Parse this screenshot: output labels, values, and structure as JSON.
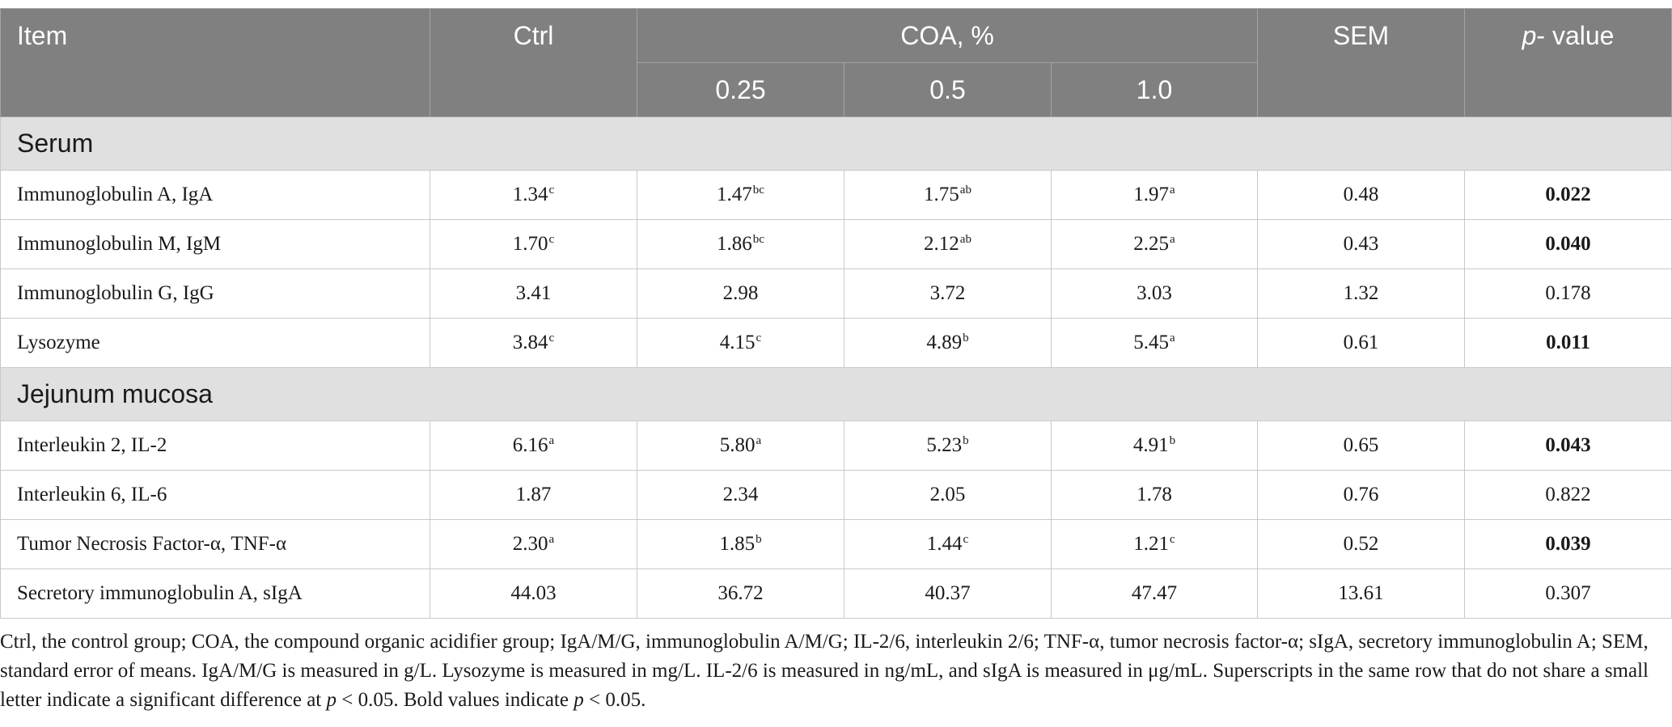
{
  "colors": {
    "header_background": "#808080",
    "header_text": "#ffffff",
    "section_background": "#e0e0e0",
    "grid_border": "#c9c9c9"
  },
  "table": {
    "header": {
      "item": "Item",
      "ctrl": "Ctrl",
      "coa": "COA, %",
      "coa_levels": [
        "0.25",
        "0.5",
        "1.0"
      ],
      "sem": "SEM",
      "p_italic": "p",
      "p_rest": "- value"
    },
    "sections": [
      {
        "label": "Serum",
        "rows": [
          {
            "item": "Immunoglobulin A, IgA",
            "values": [
              {
                "value": "1.34",
                "sup": "c"
              },
              {
                "value": "1.47",
                "sup": "bc"
              },
              {
                "value": "1.75",
                "sup": "ab"
              },
              {
                "value": "1.97",
                "sup": "a"
              }
            ],
            "sem": "0.48",
            "p": {
              "value": "0.022",
              "bold": true
            }
          },
          {
            "item": "Immunoglobulin M, IgM",
            "values": [
              {
                "value": "1.70",
                "sup": "c"
              },
              {
                "value": "1.86",
                "sup": "bc"
              },
              {
                "value": "2.12",
                "sup": "ab"
              },
              {
                "value": "2.25",
                "sup": "a"
              }
            ],
            "sem": "0.43",
            "p": {
              "value": "0.040",
              "bold": true
            }
          },
          {
            "item": "Immunoglobulin G, IgG",
            "values": [
              {
                "value": "3.41"
              },
              {
                "value": "2.98"
              },
              {
                "value": "3.72"
              },
              {
                "value": "3.03"
              }
            ],
            "sem": "1.32",
            "p": {
              "value": "0.178",
              "bold": false
            }
          },
          {
            "item": "Lysozyme",
            "values": [
              {
                "value": "3.84",
                "sup": "c"
              },
              {
                "value": "4.15",
                "sup": "c"
              },
              {
                "value": "4.89",
                "sup": "b"
              },
              {
                "value": "5.45",
                "sup": "a"
              }
            ],
            "sem": "0.61",
            "p": {
              "value": "0.011",
              "bold": true
            }
          }
        ]
      },
      {
        "label": "Jejunum mucosa",
        "rows": [
          {
            "item": "Interleukin 2, IL-2",
            "values": [
              {
                "value": "6.16",
                "sup": "a"
              },
              {
                "value": "5.80",
                "sup": "a"
              },
              {
                "value": "5.23",
                "sup": "b"
              },
              {
                "value": "4.91",
                "sup": "b"
              }
            ],
            "sem": "0.65",
            "p": {
              "value": "0.043",
              "bold": true
            }
          },
          {
            "item": "Interleukin 6, IL-6",
            "values": [
              {
                "value": "1.87"
              },
              {
                "value": "2.34"
              },
              {
                "value": "2.05"
              },
              {
                "value": "1.78"
              }
            ],
            "sem": "0.76",
            "p": {
              "value": "0.822",
              "bold": false
            }
          },
          {
            "item": "Tumor Necrosis Factor-α, TNF-α",
            "values": [
              {
                "value": "2.30",
                "sup": "a"
              },
              {
                "value": "1.85",
                "sup": "b"
              },
              {
                "value": "1.44",
                "sup": "c"
              },
              {
                "value": "1.21",
                "sup": "c"
              }
            ],
            "sem": "0.52",
            "p": {
              "value": "0.039",
              "bold": true
            }
          },
          {
            "item": "Secretory immunoglobulin A, sIgA",
            "values": [
              {
                "value": "44.03"
              },
              {
                "value": "36.72"
              },
              {
                "value": "40.37"
              },
              {
                "value": "47.47"
              }
            ],
            "sem": "13.61",
            "p": {
              "value": "0.307",
              "bold": false
            }
          }
        ]
      }
    ]
  },
  "footnote": {
    "part1": "Ctrl, the control group; COA, the compound organic acidifier group; IgA/M/G, immunoglobulin A/M/G; IL-2/6, interleukin 2/6; TNF-α, tumor necrosis factor-α; sIgA, secretory immunoglobulin A; SEM, standard error of means. IgA/M/G is measured in g/L. Lysozyme is measured in mg/L. IL-2/6 is measured in ng/mL, and sIgA is measured in μg/mL. Superscripts in the same row that do not share a small letter indicate a significant difference at ",
    "p1": "p",
    "part2": " < 0.05. Bold values indicate ",
    "p2": "p",
    "part3": " < 0.05."
  }
}
